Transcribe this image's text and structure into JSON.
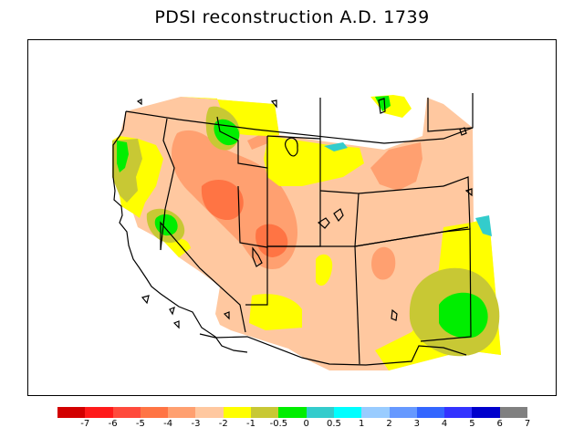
{
  "title": "PDSI reconstruction A.D. 1739",
  "colorbar": {
    "colors": [
      "#d20000",
      "#ff1a1a",
      "#ff4a3c",
      "#ff7444",
      "#ffa070",
      "#ffc8a0",
      "#ffff00",
      "#c8c834",
      "#00ee00",
      "#33cccc",
      "#00ffff",
      "#99ccff",
      "#6699ff",
      "#3366ff",
      "#3333ff",
      "#0000cc",
      "#808080"
    ],
    "tick_labels": [
      "-7",
      "-6",
      "-5",
      "-4",
      "-3",
      "-2",
      "-1",
      "-0.5",
      "0",
      "0.5",
      "1",
      "2",
      "3",
      "4",
      "5",
      "6",
      "7"
    ]
  },
  "legend_colors": {
    "very_dry": "#ff7444",
    "dry": "#ffa070",
    "mild_dry": "#ffc8a0",
    "near_normal": "#ffff00",
    "slightly_dry": "#c8c834",
    "wet": "#00ee00",
    "moist": "#33cccc"
  }
}
